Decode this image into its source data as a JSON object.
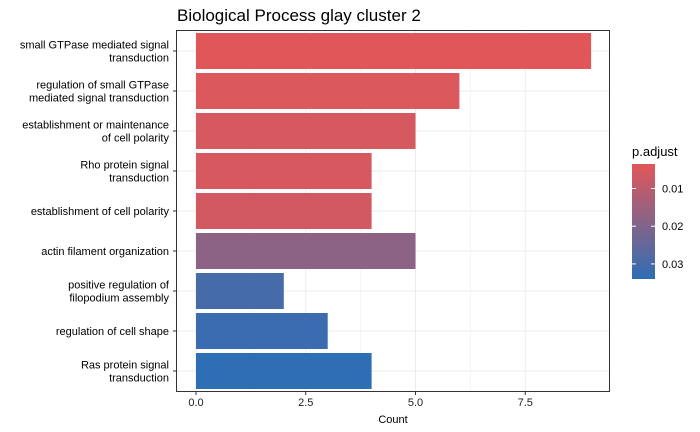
{
  "chart_data": {
    "type": "bar",
    "orientation": "horizontal",
    "title": "Biological Process glay cluster 2",
    "xlabel": "Count",
    "ylabel": "",
    "xlim": [
      0,
      9.4
    ],
    "x_ticks": [
      "0.0",
      "2.5",
      "5.0",
      "7.5"
    ],
    "x_tick_values": [
      0,
      2.5,
      5,
      7.5
    ],
    "grid": true,
    "categories": [
      "small GTPase mediated signal transduction",
      "regulation of small GTPase mediated signal transduction",
      "establishment or maintenance of cell polarity",
      "Rho protein signal transduction",
      "establishment of cell polarity",
      "actin filament organization",
      "positive regulation of filopodium assembly",
      "regulation of cell shape",
      "Ras protein signal transduction"
    ],
    "category_label_lines": [
      [
        "small GTPase mediated signal",
        "transduction"
      ],
      [
        "regulation of small GTPase",
        "mediated signal transduction"
      ],
      [
        "establishment or maintenance",
        "of cell polarity"
      ],
      [
        "Rho protein signal",
        "transduction"
      ],
      [
        "establishment of cell polarity"
      ],
      [
        "actin filament organization"
      ],
      [
        "positive regulation of",
        "filopodium assembly"
      ],
      [
        "regulation of cell shape"
      ],
      [
        "Ras protein signal",
        "transduction"
      ]
    ],
    "values": [
      9,
      6,
      5,
      4,
      4,
      5,
      2,
      3,
      4
    ],
    "p_adjust": [
      0.0035,
      0.0045,
      0.0055,
      0.0055,
      0.006,
      0.018,
      0.03,
      0.032,
      0.034
    ],
    "legend": {
      "title": "p.adjust",
      "placement": "right",
      "ticks": [
        "0.01",
        "0.02",
        "0.03"
      ],
      "tick_values": [
        0.01,
        0.02,
        0.03
      ],
      "range": [
        0.0035,
        0.034
      ],
      "low_color": "#e15759",
      "high_color": "#2e6eb5"
    }
  }
}
